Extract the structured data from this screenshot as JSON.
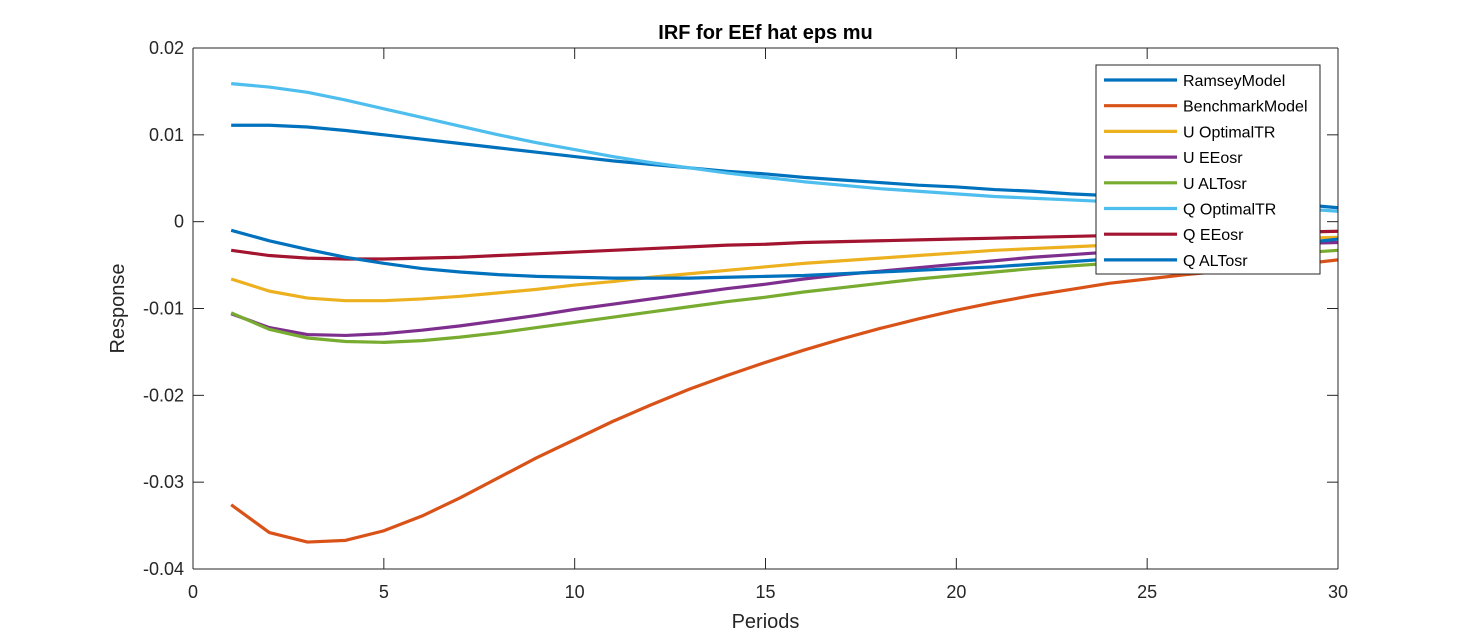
{
  "chart_data": {
    "type": "line",
    "title": "IRF for EEf hat eps mu",
    "xlabel": "Periods",
    "ylabel": "Response",
    "xlim": [
      0,
      30
    ],
    "ylim": [
      -0.04,
      0.02
    ],
    "xticks": [
      0,
      5,
      10,
      15,
      20,
      25,
      30
    ],
    "yticks": [
      -0.04,
      -0.03,
      -0.02,
      -0.01,
      0,
      0.01,
      0.02
    ],
    "xtick_labels": [
      "0",
      "5",
      "10",
      "15",
      "20",
      "25",
      "30"
    ],
    "ytick_labels": [
      "-0.04",
      "-0.03",
      "-0.02",
      "-0.01",
      "0",
      "0.01",
      "0.02"
    ],
    "grid": false,
    "legend_position": "top-right",
    "x": [
      1,
      2,
      3,
      4,
      5,
      6,
      7,
      8,
      9,
      10,
      11,
      12,
      13,
      14,
      15,
      16,
      17,
      18,
      19,
      20,
      21,
      22,
      23,
      24,
      25,
      26,
      27,
      28,
      29,
      30
    ],
    "series": [
      {
        "name": "RamseyModel",
        "color": "#0072BD",
        "values": [
          0.0111,
          0.0111,
          0.0109,
          0.0105,
          0.01,
          0.0095,
          0.009,
          0.0085,
          0.008,
          0.0075,
          0.007,
          0.0066,
          0.0062,
          0.0058,
          0.0055,
          0.0051,
          0.0048,
          0.0045,
          0.0042,
          0.004,
          0.0037,
          0.0035,
          0.0032,
          0.003,
          0.0028,
          0.0026,
          0.0024,
          0.0022,
          0.002,
          0.0016
        ]
      },
      {
        "name": "BenchmarkModel",
        "color": "#D95319",
        "values": [
          -0.0326,
          -0.0358,
          -0.0369,
          -0.0367,
          -0.0356,
          -0.0339,
          -0.0318,
          -0.0295,
          -0.0272,
          -0.0251,
          -0.023,
          -0.0211,
          -0.0193,
          -0.0177,
          -0.0162,
          -0.0148,
          -0.0135,
          -0.0123,
          -0.0112,
          -0.0102,
          -0.0093,
          -0.0085,
          -0.0078,
          -0.0071,
          -0.0066,
          -0.0061,
          -0.0057,
          -0.0053,
          -0.0049,
          -0.0044
        ]
      },
      {
        "name": "U OptimalTR",
        "color": "#EDB120",
        "values": [
          -0.0066,
          -0.008,
          -0.0088,
          -0.0091,
          -0.0091,
          -0.0089,
          -0.0086,
          -0.0082,
          -0.0078,
          -0.0073,
          -0.0069,
          -0.0064,
          -0.006,
          -0.0056,
          -0.0052,
          -0.0048,
          -0.0045,
          -0.0042,
          -0.0039,
          -0.0036,
          -0.0033,
          -0.0031,
          -0.0029,
          -0.0027,
          -0.0025,
          -0.0023,
          -0.0022,
          -0.002,
          -0.0019,
          -0.0018
        ]
      },
      {
        "name": "U EEosr",
        "color": "#7E2F8E",
        "values": [
          -0.0106,
          -0.0122,
          -0.013,
          -0.0131,
          -0.0129,
          -0.0125,
          -0.012,
          -0.0114,
          -0.0108,
          -0.0101,
          -0.0095,
          -0.0089,
          -0.0083,
          -0.0077,
          -0.0072,
          -0.0066,
          -0.0061,
          -0.0057,
          -0.0053,
          -0.0049,
          -0.0045,
          -0.0041,
          -0.0038,
          -0.0035,
          -0.0032,
          -0.003,
          -0.0028,
          -0.0026,
          -0.0025,
          -0.0024
        ]
      },
      {
        "name": "U ALTosr",
        "color": "#77AC30",
        "values": [
          -0.0105,
          -0.0124,
          -0.0134,
          -0.0138,
          -0.0139,
          -0.0137,
          -0.0133,
          -0.0128,
          -0.0122,
          -0.0116,
          -0.011,
          -0.0104,
          -0.0098,
          -0.0092,
          -0.0087,
          -0.0081,
          -0.0076,
          -0.0071,
          -0.0066,
          -0.0062,
          -0.0058,
          -0.0054,
          -0.0051,
          -0.0048,
          -0.0045,
          -0.0042,
          -0.004,
          -0.0038,
          -0.0036,
          -0.0033
        ]
      },
      {
        "name": "Q OptimalTR",
        "color": "#4DBEEE",
        "values": [
          0.0159,
          0.0155,
          0.0149,
          0.014,
          0.013,
          0.012,
          0.011,
          0.01,
          0.0091,
          0.0083,
          0.0075,
          0.0068,
          0.0062,
          0.0056,
          0.0051,
          0.0046,
          0.0042,
          0.0038,
          0.0035,
          0.0032,
          0.0029,
          0.0027,
          0.0025,
          0.0023,
          0.0021,
          0.0019,
          0.0018,
          0.0016,
          0.0015,
          0.0012
        ]
      },
      {
        "name": "Q EEosr",
        "color": "#A2142F",
        "values": [
          -0.0033,
          -0.0039,
          -0.0042,
          -0.0043,
          -0.0043,
          -0.0042,
          -0.0041,
          -0.0039,
          -0.0037,
          -0.0035,
          -0.0033,
          -0.0031,
          -0.0029,
          -0.0027,
          -0.0026,
          -0.0024,
          -0.0023,
          -0.0022,
          -0.0021,
          -0.002,
          -0.0019,
          -0.0018,
          -0.0017,
          -0.0016,
          -0.0015,
          -0.0014,
          -0.0013,
          -0.0013,
          -0.0012,
          -0.0011
        ]
      },
      {
        "name": "Q ALTosr",
        "color": "#0072BD",
        "values": [
          -0.001,
          -0.0022,
          -0.0032,
          -0.0041,
          -0.0048,
          -0.0054,
          -0.0058,
          -0.0061,
          -0.0063,
          -0.0064,
          -0.0065,
          -0.0065,
          -0.0065,
          -0.0064,
          -0.0063,
          -0.0062,
          -0.006,
          -0.0058,
          -0.0056,
          -0.0054,
          -0.0052,
          -0.0049,
          -0.0046,
          -0.0043,
          -0.004,
          -0.0037,
          -0.0033,
          -0.0029,
          -0.0025,
          -0.002
        ]
      }
    ]
  }
}
